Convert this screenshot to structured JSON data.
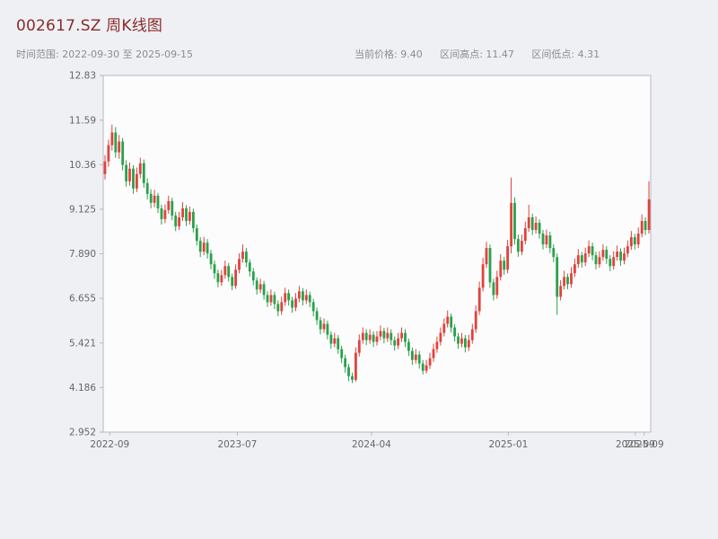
{
  "header": {
    "title": "002617.SZ 周K线图",
    "time_range": "时间范围: 2022-09-30 至 2025-09-15",
    "stats": [
      "当前价格: 9.40",
      "区间高点: 11.47",
      "区间低点: 4.31"
    ]
  },
  "chart_data": {
    "type": "candlestick",
    "symbol": "002617.SZ",
    "interval": "weekly",
    "title": "002617.SZ 周K线图",
    "start_date": "2022-09-30",
    "end_date": "2025-09-15",
    "current_price": 9.4,
    "range_high": 11.47,
    "range_low": 4.31,
    "ylim": [
      2.952,
      12.83
    ],
    "y_ticks": [
      "12.83",
      "11.59",
      "10.36",
      "9.125",
      "7.890",
      "6.655",
      "5.421",
      "4.186",
      "2.952"
    ],
    "x_ticks": [
      {
        "label": "2022-09",
        "pos": 0.012
      },
      {
        "label": "2023-07",
        "pos": 0.245
      },
      {
        "label": "2024-04",
        "pos": 0.49
      },
      {
        "label": "2025-01",
        "pos": 0.74
      },
      {
        "label": "2025-09",
        "pos": 0.972
      },
      {
        "label": "2025-09",
        "pos": 0.988
      }
    ],
    "grid": false,
    "legend": "none",
    "colors": {
      "up": "#e0433c",
      "down": "#2aa14b",
      "title": "#8b2a2a",
      "subtitle": "#8c8c8c",
      "background": "#eef0f4",
      "plot_background": "#fcfcfd",
      "axis": "#b6b9c0",
      "tick_text": "#666666"
    },
    "candles_format": [
      "open",
      "high",
      "low",
      "close"
    ],
    "candles": [
      [
        10.1,
        10.62,
        9.95,
        10.45
      ],
      [
        10.45,
        11.05,
        10.3,
        10.9
      ],
      [
        10.9,
        11.47,
        10.75,
        11.25
      ],
      [
        11.25,
        11.4,
        10.55,
        10.7
      ],
      [
        10.7,
        11.18,
        10.52,
        11.0
      ],
      [
        11.0,
        11.1,
        10.2,
        10.35
      ],
      [
        10.35,
        10.48,
        9.75,
        9.9
      ],
      [
        9.9,
        10.42,
        9.78,
        10.25
      ],
      [
        10.25,
        10.35,
        9.55,
        9.7
      ],
      [
        9.7,
        10.28,
        9.6,
        10.1
      ],
      [
        10.1,
        10.55,
        9.98,
        10.4
      ],
      [
        10.4,
        10.5,
        9.72,
        9.85
      ],
      [
        9.85,
        9.98,
        9.4,
        9.55
      ],
      [
        9.55,
        9.68,
        9.15,
        9.3
      ],
      [
        9.3,
        9.66,
        9.18,
        9.5
      ],
      [
        9.5,
        9.58,
        9.02,
        9.15
      ],
      [
        9.15,
        9.25,
        8.7,
        8.85
      ],
      [
        8.85,
        9.26,
        8.74,
        9.1
      ],
      [
        9.1,
        9.5,
        9.0,
        9.35
      ],
      [
        9.35,
        9.44,
        8.82,
        8.95
      ],
      [
        8.95,
        9.05,
        8.52,
        8.65
      ],
      [
        8.65,
        9.05,
        8.55,
        8.9
      ],
      [
        8.9,
        9.32,
        8.8,
        9.15
      ],
      [
        9.15,
        9.24,
        8.66,
        8.8
      ],
      [
        8.8,
        9.2,
        8.7,
        9.05
      ],
      [
        9.05,
        9.14,
        8.48,
        8.6
      ],
      [
        8.6,
        8.7,
        8.12,
        8.25
      ],
      [
        8.25,
        8.35,
        7.8,
        7.95
      ],
      [
        7.95,
        8.36,
        7.85,
        8.2
      ],
      [
        8.2,
        8.3,
        7.76,
        7.9
      ],
      [
        7.9,
        8.0,
        7.46,
        7.6
      ],
      [
        7.6,
        7.7,
        7.2,
        7.35
      ],
      [
        7.35,
        7.45,
        6.96,
        7.1
      ],
      [
        7.1,
        7.44,
        7.0,
        7.3
      ],
      [
        7.3,
        7.7,
        7.2,
        7.55
      ],
      [
        7.55,
        7.64,
        7.12,
        7.25
      ],
      [
        7.25,
        7.34,
        6.88,
        7.0
      ],
      [
        7.0,
        7.6,
        6.92,
        7.45
      ],
      [
        7.45,
        7.9,
        7.35,
        7.75
      ],
      [
        7.75,
        8.15,
        7.65,
        7.95
      ],
      [
        7.95,
        8.05,
        7.52,
        7.65
      ],
      [
        7.65,
        7.74,
        7.26,
        7.4
      ],
      [
        7.4,
        7.5,
        7.02,
        7.15
      ],
      [
        7.15,
        7.24,
        6.76,
        6.9
      ],
      [
        6.9,
        7.2,
        6.8,
        7.05
      ],
      [
        7.05,
        7.14,
        6.62,
        6.75
      ],
      [
        6.75,
        6.85,
        6.42,
        6.55
      ],
      [
        6.55,
        6.9,
        6.45,
        6.75
      ],
      [
        6.75,
        6.84,
        6.36,
        6.5
      ],
      [
        6.5,
        6.6,
        6.16,
        6.3
      ],
      [
        6.3,
        6.7,
        6.2,
        6.55
      ],
      [
        6.55,
        6.95,
        6.45,
        6.8
      ],
      [
        6.8,
        6.9,
        6.46,
        6.6
      ],
      [
        6.6,
        6.7,
        6.26,
        6.4
      ],
      [
        6.4,
        6.8,
        6.3,
        6.65
      ],
      [
        6.65,
        7.0,
        6.55,
        6.85
      ],
      [
        6.85,
        6.94,
        6.46,
        6.6
      ],
      [
        6.6,
        6.9,
        6.5,
        6.75
      ],
      [
        6.75,
        6.84,
        6.41,
        6.55
      ],
      [
        6.55,
        6.64,
        6.16,
        6.3
      ],
      [
        6.3,
        6.4,
        5.92,
        6.05
      ],
      [
        6.05,
        6.14,
        5.66,
        5.8
      ],
      [
        5.8,
        6.1,
        5.7,
        5.95
      ],
      [
        5.95,
        6.04,
        5.52,
        5.65
      ],
      [
        5.65,
        5.74,
        5.26,
        5.4
      ],
      [
        5.4,
        5.7,
        5.3,
        5.55
      ],
      [
        5.55,
        5.64,
        5.12,
        5.25
      ],
      [
        5.25,
        5.34,
        4.86,
        5.0
      ],
      [
        5.0,
        5.1,
        4.6,
        4.75
      ],
      [
        4.75,
        4.84,
        4.36,
        4.5
      ],
      [
        4.5,
        4.6,
        4.31,
        4.4
      ],
      [
        4.4,
        5.3,
        4.35,
        5.15
      ],
      [
        5.15,
        5.66,
        5.05,
        5.5
      ],
      [
        5.5,
        5.85,
        5.4,
        5.7
      ],
      [
        5.7,
        5.8,
        5.36,
        5.5
      ],
      [
        5.5,
        5.8,
        5.4,
        5.65
      ],
      [
        5.65,
        5.74,
        5.31,
        5.45
      ],
      [
        5.45,
        5.75,
        5.35,
        5.6
      ],
      [
        5.6,
        5.9,
        5.5,
        5.75
      ],
      [
        5.75,
        5.84,
        5.41,
        5.55
      ],
      [
        5.55,
        5.85,
        5.45,
        5.7
      ],
      [
        5.7,
        5.8,
        5.36,
        5.5
      ],
      [
        5.5,
        5.6,
        5.21,
        5.35
      ],
      [
        5.35,
        5.7,
        5.25,
        5.55
      ],
      [
        5.55,
        5.85,
        5.45,
        5.7
      ],
      [
        5.7,
        5.8,
        5.31,
        5.45
      ],
      [
        5.45,
        5.54,
        5.06,
        5.2
      ],
      [
        5.2,
        5.3,
        4.81,
        4.95
      ],
      [
        4.95,
        5.25,
        4.85,
        5.1
      ],
      [
        5.1,
        5.2,
        4.71,
        4.85
      ],
      [
        4.85,
        4.95,
        4.55,
        4.65
      ],
      [
        4.65,
        4.95,
        4.58,
        4.8
      ],
      [
        4.8,
        5.15,
        4.7,
        5.0
      ],
      [
        5.0,
        5.4,
        4.9,
        5.25
      ],
      [
        5.25,
        5.6,
        5.15,
        5.45
      ],
      [
        5.45,
        5.85,
        5.35,
        5.7
      ],
      [
        5.7,
        6.1,
        5.6,
        5.95
      ],
      [
        5.95,
        6.32,
        5.85,
        6.15
      ],
      [
        6.15,
        6.24,
        5.71,
        5.85
      ],
      [
        5.85,
        5.94,
        5.46,
        5.6
      ],
      [
        5.6,
        5.7,
        5.26,
        5.4
      ],
      [
        5.4,
        5.7,
        5.3,
        5.55
      ],
      [
        5.55,
        5.64,
        5.16,
        5.3
      ],
      [
        5.3,
        5.65,
        5.2,
        5.5
      ],
      [
        5.5,
        5.95,
        5.4,
        5.8
      ],
      [
        5.8,
        6.46,
        5.7,
        6.3
      ],
      [
        6.3,
        7.12,
        6.2,
        6.95
      ],
      [
        6.95,
        7.78,
        6.85,
        7.6
      ],
      [
        7.6,
        8.22,
        7.5,
        8.05
      ],
      [
        8.05,
        8.15,
        6.95,
        7.1
      ],
      [
        7.1,
        7.2,
        6.6,
        6.75
      ],
      [
        6.75,
        7.42,
        6.65,
        7.25
      ],
      [
        7.25,
        7.88,
        7.15,
        7.7
      ],
      [
        7.7,
        7.8,
        7.31,
        7.45
      ],
      [
        7.45,
        8.28,
        7.35,
        8.1
      ],
      [
        8.1,
        10.0,
        7.9,
        9.3
      ],
      [
        9.3,
        9.45,
        8.15,
        8.3
      ],
      [
        8.3,
        8.42,
        7.81,
        7.95
      ],
      [
        7.95,
        8.42,
        7.85,
        8.25
      ],
      [
        8.25,
        8.78,
        8.15,
        8.6
      ],
      [
        8.6,
        9.25,
        8.5,
        8.9
      ],
      [
        8.9,
        9.0,
        8.41,
        8.55
      ],
      [
        8.55,
        8.92,
        8.45,
        8.75
      ],
      [
        8.75,
        8.84,
        8.31,
        8.45
      ],
      [
        8.45,
        8.55,
        8.01,
        8.15
      ],
      [
        8.15,
        8.56,
        8.05,
        8.4
      ],
      [
        8.4,
        8.5,
        7.91,
        8.05
      ],
      [
        8.05,
        8.15,
        7.66,
        7.8
      ],
      [
        7.8,
        7.9,
        6.2,
        6.7
      ],
      [
        6.7,
        7.16,
        6.6,
        7.0
      ],
      [
        7.0,
        7.42,
        6.9,
        7.25
      ],
      [
        7.25,
        7.34,
        6.91,
        7.05
      ],
      [
        7.05,
        7.52,
        6.95,
        7.35
      ],
      [
        7.35,
        7.76,
        7.25,
        7.6
      ],
      [
        7.6,
        8.02,
        7.5,
        7.85
      ],
      [
        7.85,
        7.94,
        7.51,
        7.65
      ],
      [
        7.65,
        8.06,
        7.55,
        7.9
      ],
      [
        7.9,
        8.26,
        7.8,
        8.1
      ],
      [
        8.1,
        8.2,
        7.71,
        7.85
      ],
      [
        7.85,
        7.95,
        7.46,
        7.6
      ],
      [
        7.6,
        7.96,
        7.5,
        7.8
      ],
      [
        7.8,
        8.16,
        7.7,
        8.0
      ],
      [
        8.0,
        8.1,
        7.61,
        7.75
      ],
      [
        7.75,
        7.85,
        7.41,
        7.55
      ],
      [
        7.55,
        7.96,
        7.45,
        7.8
      ],
      [
        7.8,
        8.12,
        7.7,
        7.95
      ],
      [
        7.95,
        8.04,
        7.56,
        7.7
      ],
      [
        7.7,
        8.06,
        7.6,
        7.9
      ],
      [
        7.9,
        8.26,
        7.8,
        8.1
      ],
      [
        8.1,
        8.52,
        8.0,
        8.35
      ],
      [
        8.35,
        8.44,
        8.01,
        8.15
      ],
      [
        8.15,
        8.62,
        8.05,
        8.45
      ],
      [
        8.45,
        8.98,
        8.35,
        8.8
      ],
      [
        8.8,
        8.9,
        8.41,
        8.55
      ],
      [
        8.55,
        9.9,
        8.45,
        9.4
      ]
    ]
  }
}
